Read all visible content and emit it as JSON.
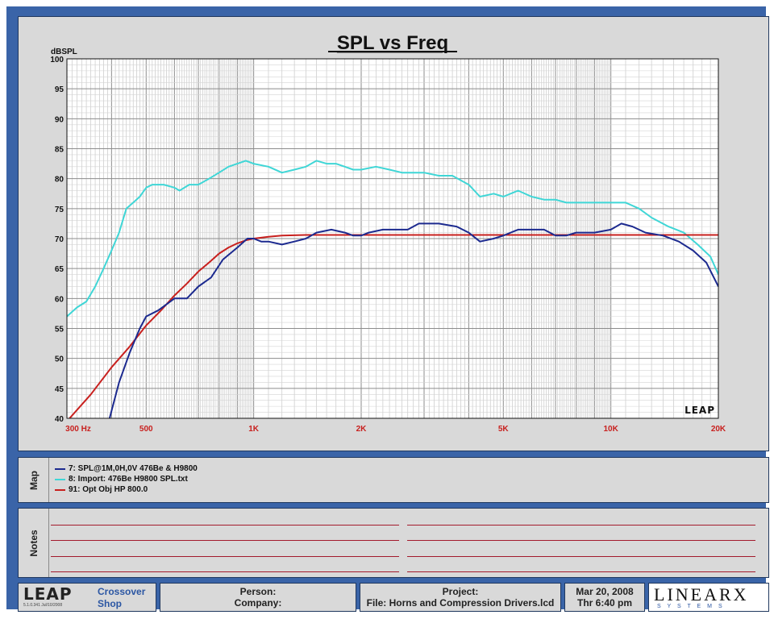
{
  "chart_data": {
    "type": "line",
    "title": "SPL vs Freq",
    "ylabel": "dBSPL",
    "xlabel": "",
    "xscale": "log",
    "xlim": [
      300,
      20000
    ],
    "ylim": [
      40,
      100
    ],
    "grid": true,
    "yticks": [
      100,
      95,
      90,
      85,
      80,
      75,
      70,
      65,
      60,
      55,
      50,
      45,
      40
    ],
    "xticks": [
      {
        "value": 300,
        "label": "300  Hz"
      },
      {
        "value": 500,
        "label": "500"
      },
      {
        "value": 1000,
        "label": "1K"
      },
      {
        "value": 2000,
        "label": "2K"
      },
      {
        "value": 5000,
        "label": "5K"
      },
      {
        "value": 10000,
        "label": "10K"
      },
      {
        "value": 20000,
        "label": "20K"
      }
    ],
    "watermark": "LEAP",
    "series": [
      {
        "name": "7: SPL@1M,0H,0V  476Be & H9800",
        "color": "#1c2a8f",
        "points": [
          [
            395,
            40
          ],
          [
            420,
            46
          ],
          [
            450,
            51
          ],
          [
            480,
            55
          ],
          [
            500,
            57
          ],
          [
            540,
            58
          ],
          [
            600,
            60
          ],
          [
            650,
            60
          ],
          [
            700,
            62
          ],
          [
            760,
            63.5
          ],
          [
            820,
            66.5
          ],
          [
            900,
            68.5
          ],
          [
            960,
            70
          ],
          [
            1000,
            70
          ],
          [
            1050,
            69.5
          ],
          [
            1100,
            69.5
          ],
          [
            1200,
            69
          ],
          [
            1300,
            69.5
          ],
          [
            1400,
            70
          ],
          [
            1500,
            71
          ],
          [
            1650,
            71.5
          ],
          [
            1800,
            71
          ],
          [
            1900,
            70.5
          ],
          [
            2000,
            70.5
          ],
          [
            2100,
            71
          ],
          [
            2300,
            71.5
          ],
          [
            2500,
            71.5
          ],
          [
            2700,
            71.5
          ],
          [
            2900,
            72.5
          ],
          [
            3300,
            72.5
          ],
          [
            3700,
            72
          ],
          [
            4000,
            71
          ],
          [
            4300,
            69.5
          ],
          [
            4700,
            70
          ],
          [
            5000,
            70.5
          ],
          [
            5500,
            71.5
          ],
          [
            6000,
            71.5
          ],
          [
            6500,
            71.5
          ],
          [
            7000,
            70.5
          ],
          [
            7500,
            70.5
          ],
          [
            8000,
            71
          ],
          [
            9000,
            71
          ],
          [
            10000,
            71.5
          ],
          [
            10700,
            72.5
          ],
          [
            11500,
            72
          ],
          [
            12500,
            71
          ],
          [
            14000,
            70.5
          ],
          [
            15500,
            69.5
          ],
          [
            17000,
            68
          ],
          [
            18500,
            66
          ],
          [
            20000,
            62
          ]
        ]
      },
      {
        "name": "8: Import: 476Be H9800 SPL.txt",
        "color": "#3fd6d6",
        "points": [
          [
            300,
            57
          ],
          [
            320,
            58.5
          ],
          [
            340,
            59.5
          ],
          [
            360,
            62
          ],
          [
            380,
            65
          ],
          [
            400,
            68
          ],
          [
            420,
            71
          ],
          [
            440,
            75
          ],
          [
            460,
            76
          ],
          [
            480,
            77
          ],
          [
            500,
            78.5
          ],
          [
            520,
            79
          ],
          [
            560,
            79
          ],
          [
            600,
            78.5
          ],
          [
            620,
            78
          ],
          [
            660,
            79
          ],
          [
            700,
            79
          ],
          [
            750,
            80
          ],
          [
            800,
            81
          ],
          [
            850,
            82
          ],
          [
            900,
            82.5
          ],
          [
            950,
            83
          ],
          [
            1000,
            82.5
          ],
          [
            1100,
            82
          ],
          [
            1200,
            81
          ],
          [
            1300,
            81.5
          ],
          [
            1400,
            82
          ],
          [
            1500,
            83
          ],
          [
            1600,
            82.5
          ],
          [
            1700,
            82.5
          ],
          [
            1800,
            82
          ],
          [
            1900,
            81.5
          ],
          [
            2000,
            81.5
          ],
          [
            2200,
            82
          ],
          [
            2400,
            81.5
          ],
          [
            2600,
            81
          ],
          [
            2800,
            81
          ],
          [
            3000,
            81
          ],
          [
            3300,
            80.5
          ],
          [
            3600,
            80.5
          ],
          [
            4000,
            79
          ],
          [
            4300,
            77
          ],
          [
            4700,
            77.5
          ],
          [
            5000,
            77
          ],
          [
            5500,
            78
          ],
          [
            6000,
            77
          ],
          [
            6500,
            76.5
          ],
          [
            7000,
            76.5
          ],
          [
            7500,
            76
          ],
          [
            8000,
            76
          ],
          [
            9000,
            76
          ],
          [
            10000,
            76
          ],
          [
            10500,
            76
          ],
          [
            11000,
            76
          ],
          [
            12000,
            75
          ],
          [
            13000,
            73.5
          ],
          [
            14500,
            72
          ],
          [
            16000,
            71
          ],
          [
            17500,
            69
          ],
          [
            19000,
            67
          ],
          [
            20000,
            64
          ]
        ]
      },
      {
        "name": "91: Opt Obj HP  800.0",
        "color": "#c8201e",
        "points": [
          [
            300,
            39.5
          ],
          [
            350,
            44
          ],
          [
            400,
            48.5
          ],
          [
            450,
            52
          ],
          [
            500,
            55.5
          ],
          [
            550,
            58
          ],
          [
            600,
            60.5
          ],
          [
            650,
            62.5
          ],
          [
            700,
            64.5
          ],
          [
            750,
            66
          ],
          [
            800,
            67.5
          ],
          [
            850,
            68.5
          ],
          [
            900,
            69.2
          ],
          [
            950,
            69.7
          ],
          [
            1000,
            70
          ],
          [
            1100,
            70.3
          ],
          [
            1200,
            70.5
          ],
          [
            1400,
            70.6
          ],
          [
            1600,
            70.6
          ],
          [
            2000,
            70.6
          ],
          [
            3000,
            70.6
          ],
          [
            5000,
            70.6
          ],
          [
            10000,
            70.6
          ],
          [
            20000,
            70.6
          ]
        ]
      }
    ]
  },
  "map": {
    "label": "Map",
    "entries": [
      {
        "text": "7: SPL@1M,0H,0V  476Be & H9800",
        "color": "#1c2a8f"
      },
      {
        "text": "8: Import: 476Be H9800 SPL.txt",
        "color": "#3fd6d6"
      },
      {
        "text": "91: Opt Obj HP  800.0",
        "color": "#c8201e"
      }
    ]
  },
  "notes": {
    "label": "Notes"
  },
  "footer": {
    "logo": "LEAP",
    "app_line1": "Crossover",
    "app_line2": "Shop",
    "version": "5.1.0.341   Jul/10/2008",
    "person": "Person:",
    "company": "Company:",
    "project": "Project:",
    "file": "File: Horns and Compression Drivers.lcd",
    "date": "Mar 20, 2008",
    "time": "Thr  6:40 pm",
    "brand": "LINEARX",
    "brand_sub": "S Y S T E M S"
  }
}
